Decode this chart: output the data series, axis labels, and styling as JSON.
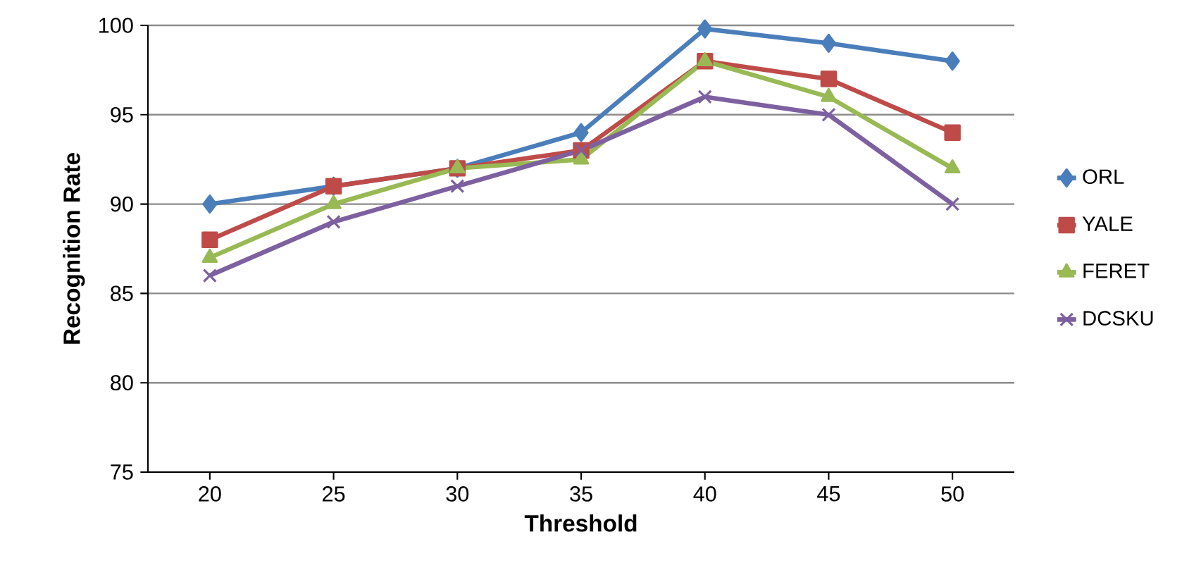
{
  "chart_data": {
    "type": "line",
    "xlabel": "Threshold",
    "ylabel": "Recognition Rate",
    "categories": [
      "20",
      "25",
      "30",
      "35",
      "40",
      "45",
      "50"
    ],
    "ylim": [
      75,
      100
    ],
    "yticks": [
      75,
      80,
      85,
      90,
      95,
      100
    ],
    "grid": "y",
    "legend": "right",
    "line_style": "solid",
    "series": [
      {
        "name": "ORL",
        "color": "#4a7ebb",
        "marker": "diamond",
        "values": [
          90,
          91,
          92,
          94,
          99.8,
          99,
          98
        ]
      },
      {
        "name": "YALE",
        "color": "#be4b48",
        "marker": "square",
        "values": [
          88,
          91,
          92,
          93,
          98,
          97,
          94
        ]
      },
      {
        "name": "FERET",
        "color": "#98b954",
        "marker": "triangle",
        "values": [
          87,
          90,
          92,
          92.5,
          98,
          96,
          92
        ]
      },
      {
        "name": "DCSKU",
        "color": "#7d60a0",
        "marker": "cross",
        "values": [
          86,
          89,
          91,
          93,
          96,
          95,
          90
        ]
      }
    ]
  }
}
